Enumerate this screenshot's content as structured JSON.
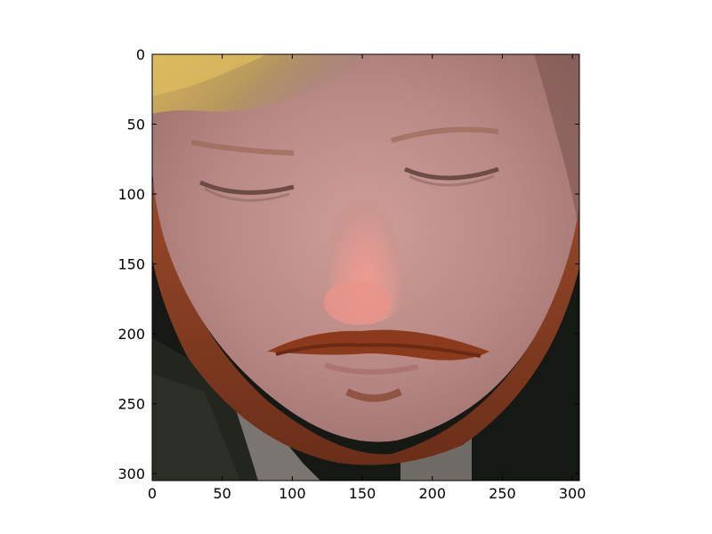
{
  "figure": {
    "description_icon": "face-photo-icon",
    "x_ticks": [
      "0",
      "50",
      "100",
      "150",
      "200",
      "250",
      "300"
    ],
    "y_ticks": [
      "0",
      "50",
      "100",
      "150",
      "200",
      "250",
      "300"
    ],
    "x_tick_values": [
      0,
      50,
      100,
      150,
      200,
      250,
      300
    ],
    "y_tick_values": [
      0,
      50,
      100,
      150,
      200,
      250,
      300
    ],
    "x_range": [
      0,
      305
    ],
    "y_range": [
      0,
      305
    ],
    "y_inverted": true
  },
  "colors": {
    "skin": "#b98a86",
    "skin_light": "#d1a19b",
    "hair": "#c7a24a",
    "beard": "#8a3d1f",
    "background_dark": "#161a14",
    "jacket": "#1e211c",
    "nose_tip": "#e58f86"
  }
}
